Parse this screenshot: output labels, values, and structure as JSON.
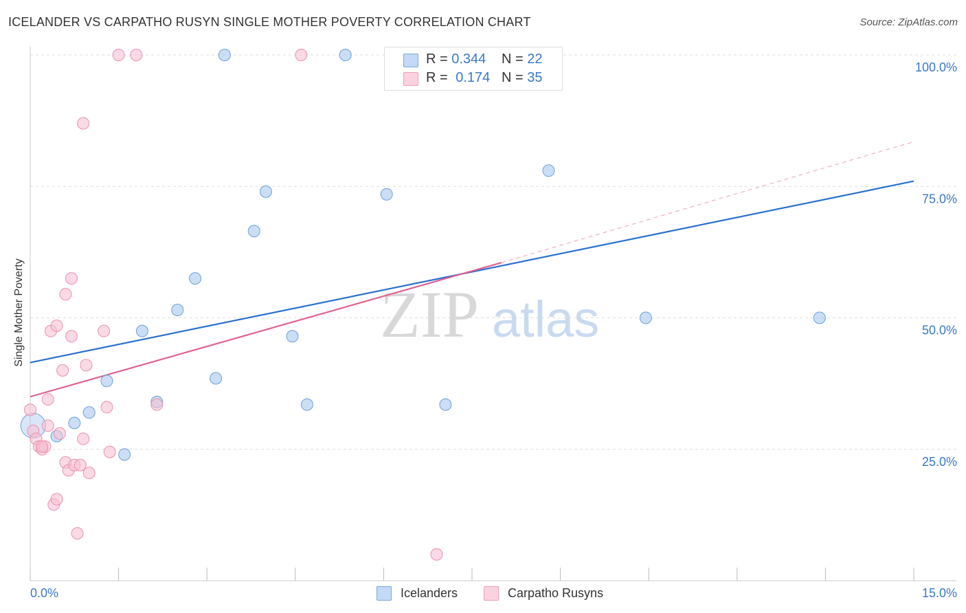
{
  "title": "ICELANDER VS CARPATHO RUSYN SINGLE MOTHER POVERTY CORRELATION CHART",
  "source": "Source: ZipAtlas.com",
  "watermark": {
    "zip": "ZIP",
    "atlas": "atlas"
  },
  "legend": {
    "rows": [
      {
        "r_label": "R =",
        "r_value": "0.344",
        "n_label": "N =",
        "n_value": "22"
      },
      {
        "r_label": "R =",
        "r_value": "0.174",
        "n_label": "N =",
        "n_value": "35"
      }
    ]
  },
  "chart_data": {
    "type": "scatter",
    "title": "ICELANDER VS CARPATHO RUSYN SINGLE MOTHER POVERTY CORRELATION CHART",
    "xlabel": "",
    "ylabel": "Single Mother Poverty",
    "xlim": [
      0,
      15
    ],
    "ylim": [
      0,
      100
    ],
    "x_tick_labels": {
      "min": "0.0%",
      "max": "15.0%"
    },
    "y_tick_labels": [
      "25.0%",
      "50.0%",
      "75.0%",
      "100.0%"
    ],
    "y_ticks": [
      25,
      50,
      75,
      100
    ],
    "grid": true,
    "series": [
      {
        "name": "Icelanders",
        "color": "#a9c8ef",
        "stroke": "#6f9fd8",
        "line_color": "#2a6fcf",
        "r": 0.344,
        "n": 22,
        "trend": {
          "x0": 0,
          "y0": 41.5,
          "x1": 15,
          "y1": 76
        },
        "points": [
          {
            "x": 0.05,
            "y": 29.5,
            "big": true
          },
          {
            "x": 0.45,
            "y": 27.5
          },
          {
            "x": 0.75,
            "y": 30
          },
          {
            "x": 1.0,
            "y": 32
          },
          {
            "x": 1.3,
            "y": 38
          },
          {
            "x": 1.6,
            "y": 24
          },
          {
            "x": 1.9,
            "y": 47.5
          },
          {
            "x": 2.15,
            "y": 34
          },
          {
            "x": 2.5,
            "y": 51.5
          },
          {
            "x": 2.8,
            "y": 57.5
          },
          {
            "x": 3.15,
            "y": 38.5
          },
          {
            "x": 3.3,
            "y": 100
          },
          {
            "x": 3.8,
            "y": 66.5
          },
          {
            "x": 4.0,
            "y": 74
          },
          {
            "x": 4.45,
            "y": 46.5
          },
          {
            "x": 4.7,
            "y": 33.5
          },
          {
            "x": 5.35,
            "y": 100
          },
          {
            "x": 6.05,
            "y": 73.5
          },
          {
            "x": 7.05,
            "y": 33.5
          },
          {
            "x": 8.8,
            "y": 78
          },
          {
            "x": 10.45,
            "y": 50
          },
          {
            "x": 13.4,
            "y": 50
          }
        ]
      },
      {
        "name": "Carpatho Rusyns",
        "color": "#f7c2d3",
        "stroke": "#eb8fae",
        "line_color": "#e0608e",
        "r": 0.174,
        "n": 35,
        "trend": {
          "x0": 0,
          "y0": 35,
          "x1": 8.0,
          "y1": 60.5
        },
        "trend_dashed": {
          "x0": 8.0,
          "y0": 60.5,
          "x1": 15,
          "y1": 83.5
        },
        "points": [
          {
            "x": 0.0,
            "y": 32.5
          },
          {
            "x": 0.05,
            "y": 28.5
          },
          {
            "x": 0.1,
            "y": 27
          },
          {
            "x": 0.15,
            "y": 25.5
          },
          {
            "x": 0.2,
            "y": 25
          },
          {
            "x": 0.25,
            "y": 25.5
          },
          {
            "x": 0.3,
            "y": 29.5
          },
          {
            "x": 0.3,
            "y": 34.5
          },
          {
            "x": 0.35,
            "y": 47.5
          },
          {
            "x": 0.4,
            "y": 14.5
          },
          {
            "x": 0.45,
            "y": 15.5
          },
          {
            "x": 0.45,
            "y": 48.5
          },
          {
            "x": 0.5,
            "y": 28
          },
          {
            "x": 0.55,
            "y": 40
          },
          {
            "x": 0.6,
            "y": 54.5
          },
          {
            "x": 0.6,
            "y": 22.5
          },
          {
            "x": 0.65,
            "y": 21
          },
          {
            "x": 0.7,
            "y": 46.5
          },
          {
            "x": 0.7,
            "y": 57.5
          },
          {
            "x": 0.75,
            "y": 22
          },
          {
            "x": 0.8,
            "y": 9
          },
          {
            "x": 0.85,
            "y": 22
          },
          {
            "x": 0.9,
            "y": 87
          },
          {
            "x": 0.9,
            "y": 27
          },
          {
            "x": 0.95,
            "y": 41
          },
          {
            "x": 1.0,
            "y": 20.5
          },
          {
            "x": 1.25,
            "y": 47.5
          },
          {
            "x": 1.3,
            "y": 33
          },
          {
            "x": 1.35,
            "y": 24.5
          },
          {
            "x": 1.5,
            "y": 100
          },
          {
            "x": 1.8,
            "y": 100
          },
          {
            "x": 2.15,
            "y": 33.5
          },
          {
            "x": 4.6,
            "y": 100
          },
          {
            "x": 6.9,
            "y": 5
          },
          {
            "x": 0.2,
            "y": 25.5
          }
        ]
      }
    ]
  }
}
